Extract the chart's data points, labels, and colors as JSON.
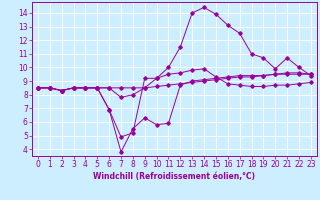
{
  "xlabel": "Windchill (Refroidissement éolien,°C)",
  "background_color": "#cceeff",
  "grid_color": "#ffffff",
  "line_color": "#990099",
  "x_ticks": [
    0,
    1,
    2,
    3,
    4,
    5,
    6,
    7,
    8,
    9,
    10,
    11,
    12,
    13,
    14,
    15,
    16,
    17,
    18,
    19,
    20,
    21,
    22,
    23
  ],
  "y_ticks": [
    4,
    5,
    6,
    7,
    8,
    9,
    10,
    11,
    12,
    13,
    14
  ],
  "ylim": [
    3.5,
    14.8
  ],
  "xlim": [
    -0.5,
    23.5
  ],
  "line1_x": [
    0,
    1,
    2,
    3,
    4,
    5,
    6,
    7,
    8,
    9,
    10,
    11,
    12,
    13,
    14,
    15,
    16,
    17,
    18,
    19,
    20,
    21,
    22,
    23
  ],
  "line1_y": [
    8.5,
    8.5,
    8.3,
    8.5,
    8.5,
    8.5,
    8.5,
    8.5,
    8.5,
    8.5,
    8.6,
    8.7,
    8.8,
    8.9,
    9.0,
    9.1,
    9.2,
    9.3,
    9.3,
    9.4,
    9.5,
    9.6,
    9.6,
    9.5
  ],
  "line2_x": [
    0,
    1,
    2,
    3,
    4,
    5,
    6,
    7,
    8,
    9,
    10,
    11,
    12,
    13,
    14,
    15,
    16,
    17,
    18,
    19,
    20,
    21,
    22,
    23
  ],
  "line2_y": [
    8.5,
    8.5,
    8.3,
    8.5,
    8.5,
    8.5,
    8.5,
    7.8,
    8.0,
    8.5,
    9.2,
    10.0,
    11.5,
    14.0,
    14.4,
    13.9,
    13.1,
    12.5,
    11.0,
    10.7,
    9.9,
    10.7,
    10.0,
    9.4
  ],
  "line3_x": [
    0,
    1,
    2,
    3,
    4,
    5,
    6,
    7,
    8,
    9,
    10,
    11,
    12,
    13,
    14,
    15,
    16,
    17,
    18,
    19,
    20,
    21,
    22,
    23
  ],
  "line3_y": [
    8.5,
    8.5,
    8.3,
    8.5,
    8.5,
    8.5,
    6.9,
    4.9,
    5.2,
    9.2,
    9.2,
    9.5,
    9.6,
    9.8,
    9.9,
    9.3,
    8.8,
    8.7,
    8.6,
    8.6,
    8.7,
    8.7,
    8.8,
    8.9
  ],
  "line4_x": [
    0,
    1,
    2,
    3,
    4,
    5,
    6,
    7,
    8,
    9,
    10,
    11,
    12,
    13,
    14,
    15,
    16,
    17,
    18,
    19,
    20,
    21,
    22,
    23
  ],
  "line4_y": [
    8.5,
    8.5,
    8.3,
    8.5,
    8.5,
    8.5,
    6.9,
    3.8,
    5.5,
    6.3,
    5.8,
    5.9,
    8.7,
    9.0,
    9.1,
    9.2,
    9.3,
    9.4,
    9.4,
    9.4,
    9.5,
    9.5,
    9.5,
    9.5
  ],
  "tick_fontsize": 5.5,
  "xlabel_fontsize": 5.5,
  "marker_size": 1.8,
  "line_width": 0.7
}
